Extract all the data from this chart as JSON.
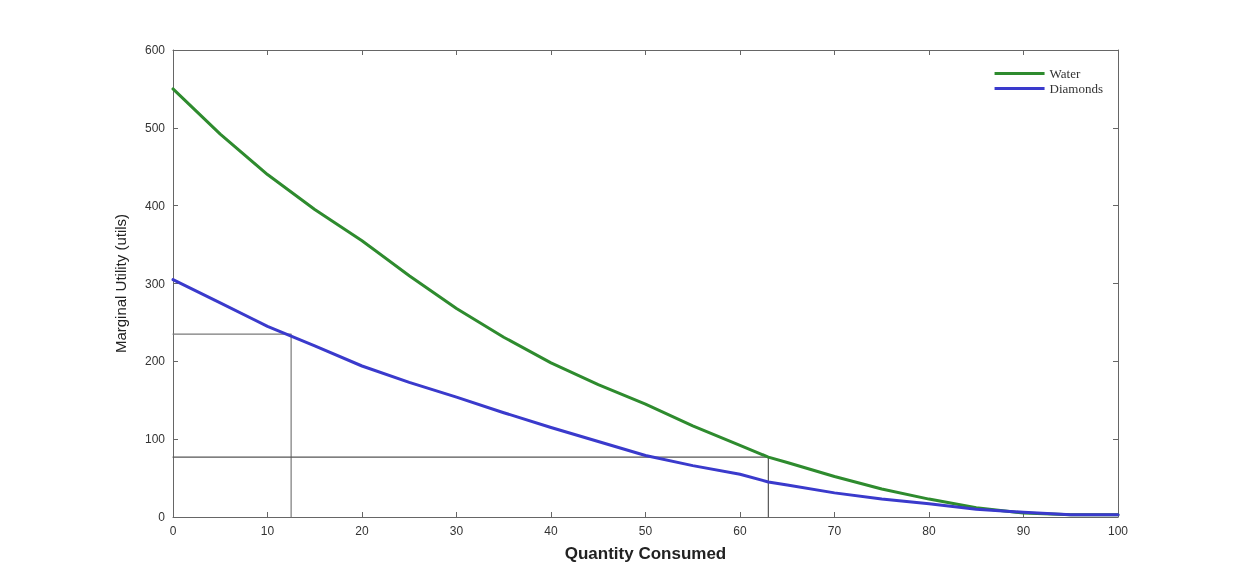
{
  "chart_data": {
    "type": "line",
    "xlabel": "Quantity Consumed",
    "ylabel": "Marginal Utility (utils)",
    "xlim": [
      0,
      100
    ],
    "xticks": [
      0,
      10,
      20,
      30,
      40,
      50,
      60,
      70,
      80,
      90,
      100
    ],
    "ylim": [
      0,
      600
    ],
    "yticks": [
      0,
      100,
      200,
      300,
      400,
      500,
      600
    ],
    "grid": false,
    "legend": "top right",
    "marker": "none",
    "line_style": "solid",
    "x": [
      0,
      5,
      10,
      15,
      20,
      25,
      30,
      35,
      40,
      45,
      50,
      55,
      60,
      63,
      65,
      70,
      75,
      80,
      85,
      90,
      95,
      100
    ],
    "series": [
      {
        "name": "Water",
        "color": "#2e8b2e",
        "values": [
          550,
          492,
          440,
          395,
          355,
          310,
          268,
          231,
          198,
          170,
          145,
          117,
          92,
          77,
          70,
          52,
          36,
          23,
          12,
          5,
          3,
          3
        ]
      },
      {
        "name": "Diamonds",
        "color": "#3a3acc",
        "values": [
          305,
          275,
          245,
          220,
          194,
          173,
          154,
          134,
          115,
          97,
          79,
          66,
          55,
          45,
          41,
          31,
          23,
          17,
          10,
          6,
          3,
          3
        ]
      },
      {
        "color": "#7a7a7a",
        "x": [
          0,
          12.5,
          12.5
        ],
        "values": [
          235,
          235,
          0
        ]
      },
      {
        "color": "#555555",
        "x": [
          0,
          63,
          63
        ],
        "values": [
          77,
          77,
          0
        ]
      }
    ]
  }
}
